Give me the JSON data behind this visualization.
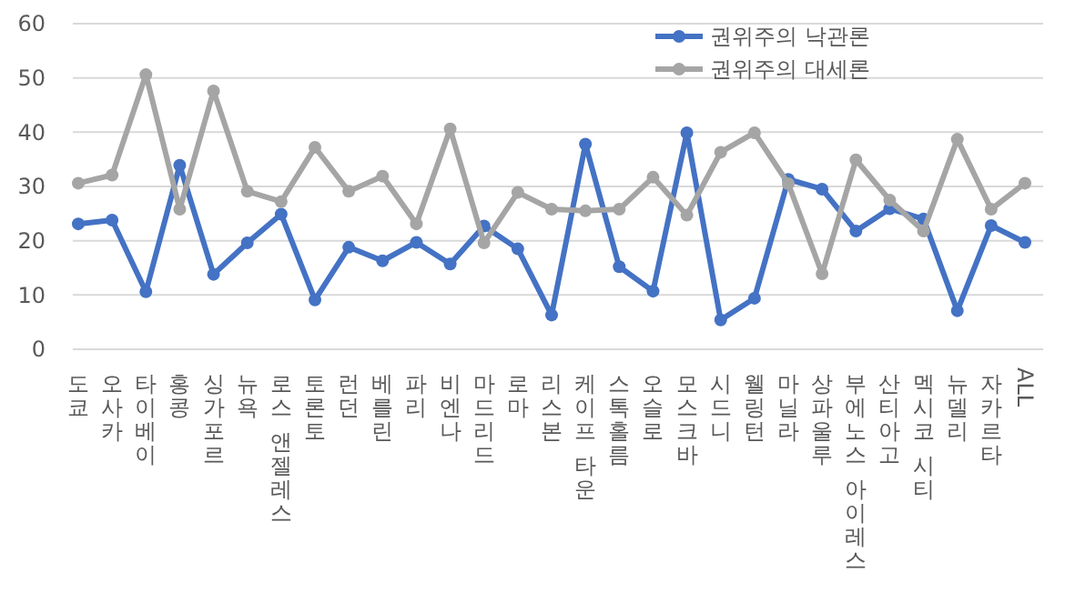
{
  "chart_data": {
    "type": "line",
    "categories": [
      "도쿄",
      "오사카",
      "타이베이",
      "홍콩",
      "싱가포르",
      "뉴욕",
      "로스 앤젤레스",
      "토론토",
      "런던",
      "베를린",
      "파리",
      "비엔나",
      "마드리드",
      "로마",
      "리스본",
      "케이프 타운",
      "스톡홀름",
      "오슬로",
      "모스크바",
      "시드니",
      "웰링턴",
      "마닐라",
      "상파울루",
      "부에노스 아이레스",
      "산티아고",
      "멕시코 시티",
      "뉴델리",
      "자카르타",
      "ALL"
    ],
    "series": [
      {
        "name": "권위주의 낙관론",
        "color": "#4472c4",
        "values": [
          23.1,
          23.8,
          10.6,
          33.9,
          13.8,
          19.6,
          24.9,
          9.1,
          18.8,
          16.3,
          19.7,
          15.7,
          22.7,
          18.5,
          6.3,
          37.8,
          15.2,
          10.7,
          39.9,
          5.4,
          9.4,
          31.3,
          29.5,
          21.8,
          25.9,
          24.0,
          7.1,
          22.8,
          19.7
        ]
      },
      {
        "name": "권위주의 대세론",
        "color": "#a5a5a5",
        "values": [
          30.6,
          32.1,
          50.6,
          25.8,
          47.6,
          29.1,
          27.2,
          37.2,
          29.1,
          31.9,
          23.1,
          40.6,
          19.6,
          28.9,
          25.8,
          25.5,
          25.8,
          31.7,
          24.7,
          36.3,
          39.9,
          30.5,
          13.9,
          34.9,
          27.5,
          21.8,
          38.7,
          25.8,
          30.6
        ]
      }
    ],
    "ylim": [
      0,
      60
    ],
    "yticks": [
      0,
      10,
      20,
      30,
      40,
      50,
      60
    ],
    "grid": "y",
    "legend": "top right",
    "marker": "circle",
    "line_style": "solid"
  }
}
